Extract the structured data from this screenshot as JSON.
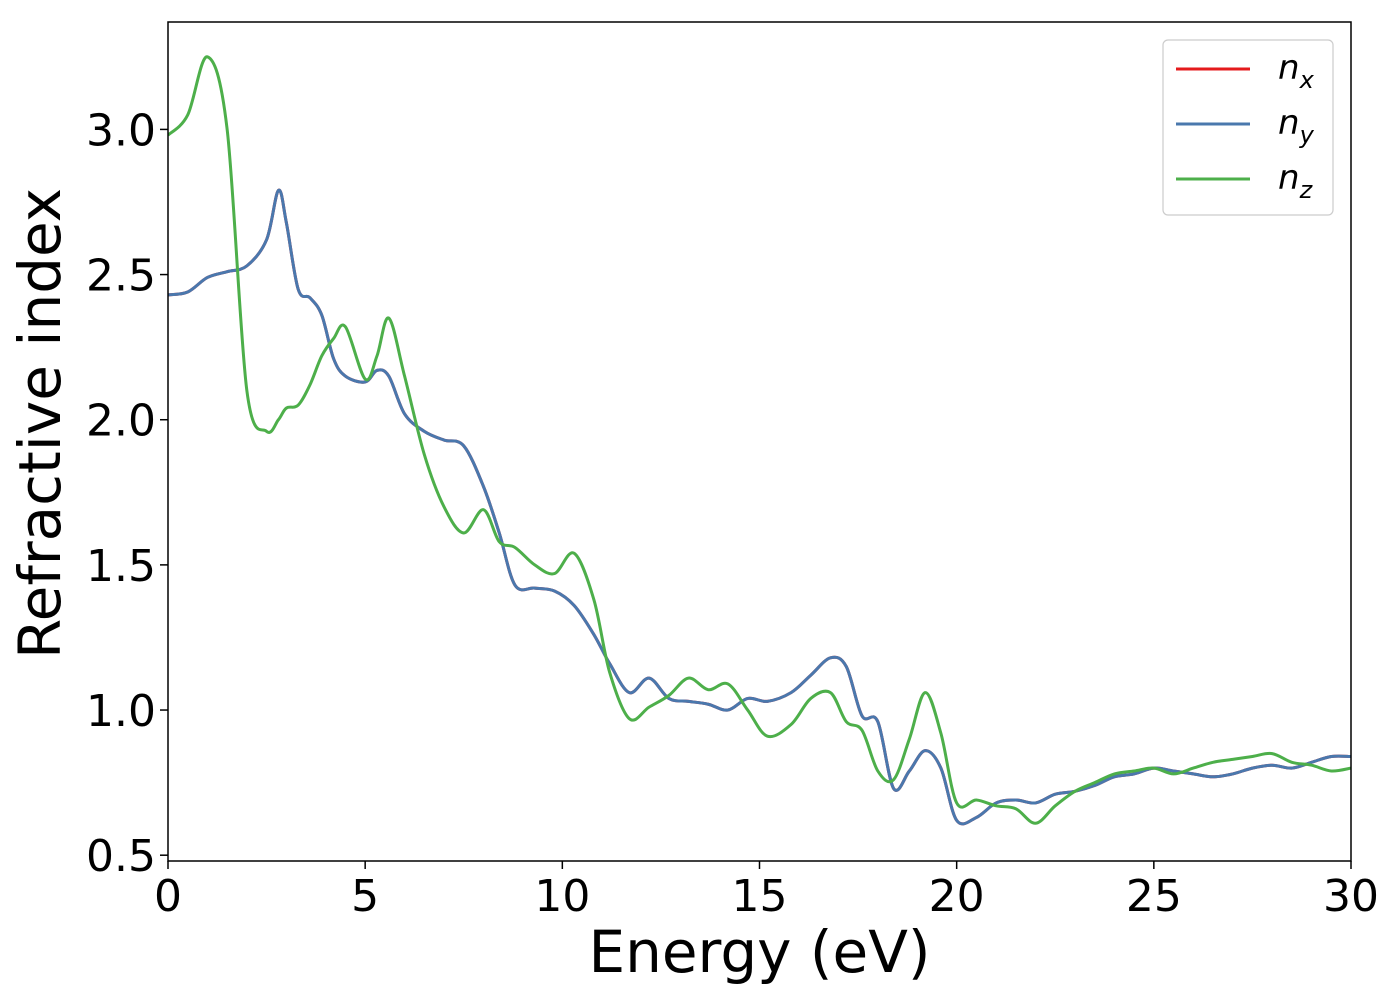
{
  "chart_data": {
    "type": "line",
    "title": "",
    "xlabel": "Energy (eV)",
    "ylabel": "Refractive index",
    "xlim": [
      0,
      30
    ],
    "ylim": [
      0.48,
      3.37
    ],
    "xticks": [
      0,
      5,
      10,
      15,
      20,
      25,
      30
    ],
    "yticks": [
      0.5,
      1.0,
      1.5,
      2.0,
      2.5,
      3.0
    ],
    "xtick_labels": [
      "0",
      "5",
      "10",
      "15",
      "20",
      "25",
      "30"
    ],
    "ytick_labels": [
      "0.5",
      "1.0",
      "1.5",
      "2.0",
      "2.5",
      "3.0"
    ],
    "grid": false,
    "legend_position": "top-right",
    "x": [
      0,
      0.5,
      1.0,
      1.5,
      2.0,
      2.5,
      2.8,
      3.0,
      3.3,
      3.6,
      3.9,
      4.2,
      4.5,
      5.0,
      5.3,
      5.6,
      6.0,
      6.5,
      7.0,
      7.5,
      8.0,
      8.4,
      8.8,
      9.3,
      9.8,
      10.3,
      10.8,
      11.2,
      11.7,
      12.2,
      12.7,
      13.2,
      13.7,
      14.2,
      14.7,
      15.2,
      15.8,
      16.3,
      16.8,
      17.2,
      17.6,
      18.0,
      18.4,
      18.8,
      19.2,
      19.6,
      20.0,
      20.5,
      21.0,
      21.5,
      22.0,
      22.5,
      23.0,
      23.5,
      24.0,
      24.5,
      25.0,
      25.5,
      26.0,
      26.5,
      27.0,
      27.5,
      28.0,
      28.5,
      29.0,
      29.5,
      30.0
    ],
    "series": [
      {
        "name": "n_x",
        "label_base": "n",
        "label_sub": "x",
        "color": "#e41a1c",
        "values": [
          2.43,
          2.44,
          2.49,
          2.51,
          2.53,
          2.62,
          2.79,
          2.68,
          2.45,
          2.42,
          2.36,
          2.21,
          2.15,
          2.13,
          2.17,
          2.15,
          2.02,
          1.96,
          1.93,
          1.91,
          1.77,
          1.61,
          1.43,
          1.42,
          1.41,
          1.36,
          1.26,
          1.16,
          1.06,
          1.11,
          1.04,
          1.03,
          1.02,
          1.0,
          1.04,
          1.03,
          1.06,
          1.12,
          1.18,
          1.15,
          0.98,
          0.96,
          0.73,
          0.79,
          0.86,
          0.8,
          0.62,
          0.63,
          0.68,
          0.69,
          0.68,
          0.71,
          0.72,
          0.74,
          0.77,
          0.78,
          0.8,
          0.79,
          0.78,
          0.77,
          0.78,
          0.8,
          0.81,
          0.8,
          0.82,
          0.84,
          0.84
        ]
      },
      {
        "name": "n_y",
        "label_base": "n",
        "label_sub": "y",
        "color": "#4a78ad",
        "values": [
          2.43,
          2.44,
          2.49,
          2.51,
          2.53,
          2.62,
          2.79,
          2.68,
          2.45,
          2.42,
          2.36,
          2.21,
          2.15,
          2.13,
          2.17,
          2.15,
          2.02,
          1.96,
          1.93,
          1.91,
          1.77,
          1.61,
          1.43,
          1.42,
          1.41,
          1.36,
          1.26,
          1.16,
          1.06,
          1.11,
          1.04,
          1.03,
          1.02,
          1.0,
          1.04,
          1.03,
          1.06,
          1.12,
          1.18,
          1.15,
          0.98,
          0.96,
          0.73,
          0.79,
          0.86,
          0.8,
          0.62,
          0.63,
          0.68,
          0.69,
          0.68,
          0.71,
          0.72,
          0.74,
          0.77,
          0.78,
          0.8,
          0.79,
          0.78,
          0.77,
          0.78,
          0.8,
          0.81,
          0.8,
          0.82,
          0.84,
          0.84
        ]
      },
      {
        "name": "n_z",
        "label_base": "n",
        "label_sub": "z",
        "color": "#4daf4a",
        "values": [
          2.98,
          3.05,
          3.25,
          3.0,
          2.1,
          1.96,
          2.0,
          2.04,
          2.05,
          2.12,
          2.22,
          2.28,
          2.32,
          2.14,
          2.22,
          2.35,
          2.15,
          1.88,
          1.7,
          1.61,
          1.69,
          1.58,
          1.56,
          1.5,
          1.47,
          1.54,
          1.38,
          1.13,
          0.97,
          1.01,
          1.05,
          1.11,
          1.07,
          1.09,
          1.0,
          0.91,
          0.95,
          1.04,
          1.06,
          0.96,
          0.93,
          0.79,
          0.76,
          0.9,
          1.06,
          0.92,
          0.68,
          0.69,
          0.67,
          0.66,
          0.61,
          0.67,
          0.72,
          0.75,
          0.78,
          0.79,
          0.8,
          0.78,
          0.8,
          0.82,
          0.83,
          0.84,
          0.85,
          0.82,
          0.81,
          0.79,
          0.8
        ]
      }
    ]
  }
}
